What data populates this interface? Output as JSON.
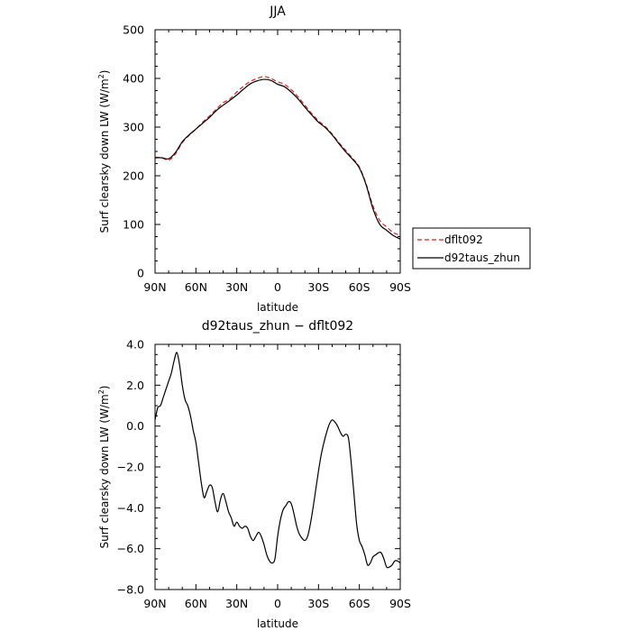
{
  "chart_data": [
    {
      "type": "line",
      "title": "JJA",
      "xlabel": "latitude",
      "ylabel": "Surf clearsky down LW (W/m²)",
      "ylabel_parts": [
        "Surf clearsky down LW (W/m",
        "2",
        ")"
      ],
      "xlim": [
        90,
        -90
      ],
      "ylim": [
        0,
        500
      ],
      "xticks": [
        90,
        60,
        30,
        0,
        -30,
        -60,
        -90
      ],
      "xtick_labels": [
        "90N",
        "60N",
        "30N",
        "0",
        "30S",
        "60S",
        "90S"
      ],
      "yticks": [
        0,
        100,
        200,
        300,
        400,
        500
      ],
      "ytick_labels": [
        "0",
        "100",
        "200",
        "300",
        "400",
        "500"
      ],
      "legend": "right",
      "series": [
        {
          "name": "dflt092",
          "color": "#e0201b",
          "dash": "dashed",
          "x": [
            90,
            85,
            80,
            75,
            70,
            65,
            60,
            55,
            50,
            45,
            40,
            35,
            30,
            25,
            20,
            15,
            10,
            5,
            0,
            -5,
            -10,
            -15,
            -20,
            -25,
            -30,
            -35,
            -40,
            -45,
            -50,
            -55,
            -60,
            -65,
            -70,
            -75,
            -80,
            -85,
            -90
          ],
          "values": [
            238,
            237,
            232,
            245,
            268,
            283,
            296,
            310,
            323,
            337,
            350,
            358,
            372,
            384,
            394,
            400,
            404,
            400,
            393,
            388,
            377,
            362,
            345,
            328,
            313,
            301,
            286,
            268,
            252,
            236,
            218,
            183,
            138,
            108,
            95,
            83,
            78
          ]
        },
        {
          "name": "d92taus_zhun",
          "color": "#000000",
          "dash": "solid",
          "x": [
            90,
            85,
            80,
            75,
            70,
            65,
            60,
            55,
            50,
            45,
            40,
            35,
            30,
            25,
            20,
            15,
            10,
            5,
            0,
            -5,
            -10,
            -15,
            -20,
            -25,
            -30,
            -35,
            -40,
            -45,
            -50,
            -55,
            -60,
            -65,
            -70,
            -75,
            -80,
            -85,
            -90
          ],
          "values": [
            237,
            237,
            235,
            248,
            270,
            284,
            296,
            308,
            320,
            334,
            345,
            355,
            366,
            378,
            389,
            395,
            398,
            396,
            388,
            383,
            372,
            358,
            341,
            325,
            310,
            299,
            284,
            266,
            249,
            234,
            216,
            181,
            132,
            100,
            88,
            77,
            70
          ]
        }
      ]
    },
    {
      "type": "line",
      "title": "d92taus_zhun − dflt092",
      "xlabel": "latitude",
      "ylabel": "Surf clearsky down LW (W/m²)",
      "ylabel_parts": [
        "Surf clearsky down LW (W/m",
        "2",
        ")"
      ],
      "xlim": [
        90,
        -90
      ],
      "ylim": [
        -8,
        4
      ],
      "xticks": [
        90,
        60,
        30,
        0,
        -30,
        -60,
        -90
      ],
      "xtick_labels": [
        "90N",
        "60N",
        "30N",
        "0",
        "30S",
        "60S",
        "90S"
      ],
      "yticks": [
        -8,
        -6,
        -4,
        -2,
        0,
        2,
        4
      ],
      "ytick_labels": [
        "−8.0",
        "−6.0",
        "−4.0",
        "−2.0",
        "0.0",
        "2.0",
        "4.0"
      ],
      "series": [
        {
          "name": "",
          "color": "#000000",
          "dash": "solid",
          "x": [
            90,
            88,
            86,
            84,
            82,
            80,
            78,
            76,
            74,
            72,
            70,
            68,
            66,
            64,
            62,
            60,
            58,
            56,
            54,
            52,
            50,
            48,
            46,
            44,
            42,
            40,
            38,
            36,
            34,
            32,
            30,
            28,
            26,
            24,
            22,
            20,
            18,
            16,
            14,
            12,
            10,
            8,
            6,
            4,
            2,
            0,
            -2,
            -4,
            -6,
            -8,
            -10,
            -12,
            -14,
            -16,
            -18,
            -20,
            -22,
            -24,
            -26,
            -28,
            -30,
            -32,
            -34,
            -36,
            -38,
            -40,
            -42,
            -44,
            -46,
            -48,
            -50,
            -52,
            -54,
            -56,
            -58,
            -60,
            -62,
            -64,
            -66,
            -68,
            -70,
            -72,
            -74,
            -76,
            -78,
            -80,
            -82,
            -84,
            -86,
            -88,
            -90
          ],
          "values": [
            0.3,
            0.9,
            1.0,
            1.4,
            1.8,
            2.2,
            2.6,
            3.2,
            3.6,
            3.0,
            2.0,
            1.3,
            1.0,
            0.5,
            -0.2,
            -0.8,
            -1.8,
            -2.8,
            -3.5,
            -3.2,
            -2.9,
            -3.0,
            -3.7,
            -4.2,
            -3.6,
            -3.3,
            -3.7,
            -4.2,
            -4.5,
            -4.9,
            -4.7,
            -4.9,
            -5.0,
            -4.9,
            -5.0,
            -5.4,
            -5.6,
            -5.4,
            -5.2,
            -5.4,
            -5.8,
            -6.3,
            -6.6,
            -6.7,
            -6.5,
            -5.4,
            -4.6,
            -4.1,
            -3.9,
            -3.7,
            -3.8,
            -4.3,
            -4.9,
            -5.3,
            -5.5,
            -5.6,
            -5.4,
            -4.8,
            -4.0,
            -3.1,
            -2.2,
            -1.4,
            -0.8,
            -0.3,
            0.1,
            0.3,
            0.2,
            0.0,
            -0.3,
            -0.5,
            -0.4,
            -0.6,
            -1.8,
            -3.3,
            -4.8,
            -5.6,
            -5.9,
            -6.3,
            -6.8,
            -6.7,
            -6.4,
            -6.3,
            -6.2,
            -6.2,
            -6.5,
            -6.9,
            -6.9,
            -6.8,
            -6.6,
            -6.6,
            -6.7
          ]
        }
      ]
    }
  ]
}
